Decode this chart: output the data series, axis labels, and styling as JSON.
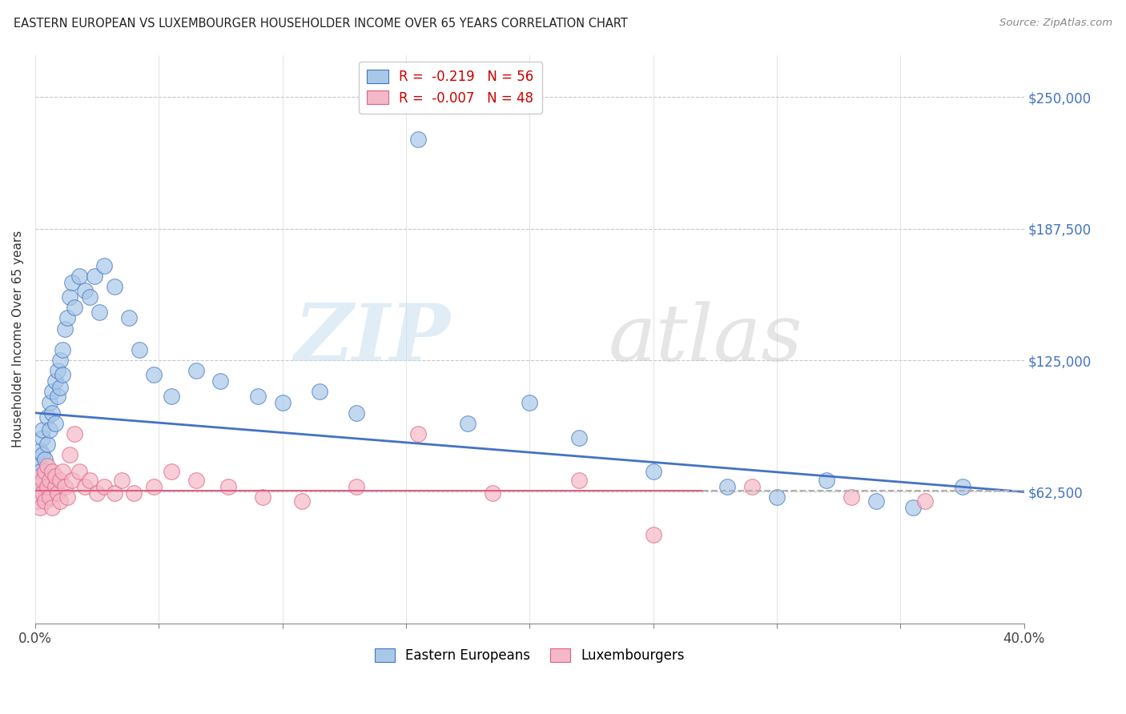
{
  "title": "EASTERN EUROPEAN VS LUXEMBOURGER HOUSEHOLDER INCOME OVER 65 YEARS CORRELATION CHART",
  "source": "Source: ZipAtlas.com",
  "ylabel": "Householder Income Over 65 years",
  "ylabel_right_labels": [
    "$62,500",
    "$125,000",
    "$187,500",
    "$250,000"
  ],
  "ylabel_right_values": [
    62500,
    125000,
    187500,
    250000
  ],
  "y_min": 0,
  "y_max": 270000,
  "x_min": 0.0,
  "x_max": 0.4,
  "legend_blue_text": "R =  -0.219   N = 56",
  "legend_pink_text": "R =  -0.007   N = 48",
  "legend_bottom_blue": "Eastern Europeans",
  "legend_bottom_pink": "Luxembourgers",
  "blue_color": "#a8c8e8",
  "pink_color": "#f4b8c8",
  "line_blue": "#4472c4",
  "line_pink": "#e06080",
  "blue_scatter_x": [
    0.001,
    0.001,
    0.002,
    0.002,
    0.003,
    0.003,
    0.003,
    0.004,
    0.004,
    0.005,
    0.005,
    0.006,
    0.006,
    0.007,
    0.007,
    0.008,
    0.008,
    0.009,
    0.009,
    0.01,
    0.01,
    0.011,
    0.011,
    0.012,
    0.013,
    0.014,
    0.015,
    0.016,
    0.018,
    0.02,
    0.022,
    0.024,
    0.026,
    0.028,
    0.032,
    0.038,
    0.042,
    0.048,
    0.055,
    0.065,
    0.075,
    0.09,
    0.1,
    0.115,
    0.13,
    0.155,
    0.175,
    0.2,
    0.22,
    0.25,
    0.28,
    0.3,
    0.32,
    0.34,
    0.355,
    0.375
  ],
  "blue_scatter_y": [
    75000,
    68000,
    82000,
    72000,
    88000,
    80000,
    92000,
    70000,
    78000,
    98000,
    85000,
    105000,
    92000,
    110000,
    100000,
    115000,
    95000,
    108000,
    120000,
    125000,
    112000,
    130000,
    118000,
    140000,
    145000,
    155000,
    162000,
    150000,
    165000,
    158000,
    155000,
    165000,
    148000,
    170000,
    160000,
    145000,
    130000,
    118000,
    108000,
    120000,
    115000,
    108000,
    105000,
    110000,
    100000,
    230000,
    95000,
    105000,
    88000,
    72000,
    65000,
    60000,
    68000,
    58000,
    55000,
    65000
  ],
  "pink_scatter_x": [
    0.001,
    0.001,
    0.002,
    0.002,
    0.002,
    0.003,
    0.003,
    0.004,
    0.004,
    0.005,
    0.005,
    0.006,
    0.006,
    0.007,
    0.007,
    0.008,
    0.008,
    0.009,
    0.01,
    0.01,
    0.011,
    0.012,
    0.013,
    0.014,
    0.015,
    0.016,
    0.018,
    0.02,
    0.022,
    0.025,
    0.028,
    0.032,
    0.035,
    0.04,
    0.048,
    0.055,
    0.065,
    0.078,
    0.092,
    0.108,
    0.13,
    0.155,
    0.185,
    0.22,
    0.25,
    0.29,
    0.33,
    0.36
  ],
  "pink_scatter_y": [
    65000,
    58000,
    70000,
    60000,
    55000,
    68000,
    62000,
    72000,
    58000,
    65000,
    75000,
    60000,
    68000,
    72000,
    55000,
    65000,
    70000,
    62000,
    68000,
    58000,
    72000,
    65000,
    60000,
    80000,
    68000,
    90000,
    72000,
    65000,
    68000,
    62000,
    65000,
    62000,
    68000,
    62000,
    65000,
    72000,
    68000,
    65000,
    60000,
    58000,
    65000,
    90000,
    62000,
    68000,
    42000,
    65000,
    60000,
    58000
  ]
}
